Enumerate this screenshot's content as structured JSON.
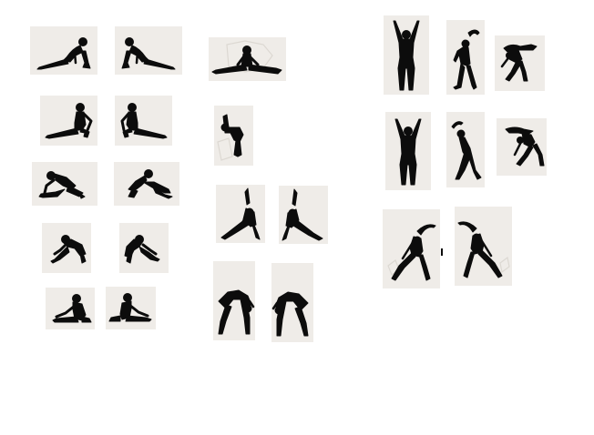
{
  "page": {
    "background": "#ffffff",
    "tile_color": "#efece8",
    "figure_color": "#0c0c0c"
  },
  "poses": [
    {
      "id": "split-forward-left",
      "icon": "split-stretch-icon"
    },
    {
      "id": "split-forward-right",
      "icon": "split-stretch-icon"
    },
    {
      "id": "side-split-center",
      "icon": "side-split-icon"
    },
    {
      "id": "arms-up-front",
      "icon": "arms-raised-icon"
    },
    {
      "id": "side-bend-right",
      "icon": "side-bend-icon"
    },
    {
      "id": "forward-bend-arm-up",
      "icon": "forward-bend-icon"
    },
    {
      "id": "seated-split-left",
      "icon": "seated-straddle-icon"
    },
    {
      "id": "seated-split-right",
      "icon": "seated-straddle-icon"
    },
    {
      "id": "standing-backbend",
      "icon": "backbend-icon"
    },
    {
      "id": "arms-up-front-2",
      "icon": "arms-raised-icon"
    },
    {
      "id": "side-bend-right-2",
      "icon": "side-bend-icon"
    },
    {
      "id": "forward-bend-arm-up-2",
      "icon": "forward-bend-icon"
    },
    {
      "id": "lunge-stretch-left",
      "icon": "lunge-stretch-icon"
    },
    {
      "id": "lunge-stretch-right",
      "icon": "lunge-stretch-icon"
    },
    {
      "id": "triangle-left",
      "icon": "triangle-pose-icon"
    },
    {
      "id": "triangle-right",
      "icon": "triangle-pose-icon"
    },
    {
      "id": "wide-side-stretch-left",
      "icon": "wide-side-stretch-icon"
    },
    {
      "id": "wide-side-stretch-right",
      "icon": "wide-side-stretch-icon"
    },
    {
      "id": "low-lunge-left",
      "icon": "low-lunge-icon"
    },
    {
      "id": "low-lunge-right",
      "icon": "low-lunge-icon"
    },
    {
      "id": "wide-forward-bend-left",
      "icon": "wide-forward-bend-icon"
    },
    {
      "id": "wide-forward-bend-right",
      "icon": "wide-forward-bend-icon"
    },
    {
      "id": "seated-forward-left",
      "icon": "seated-forward-fold-icon"
    },
    {
      "id": "seated-forward-right",
      "icon": "seated-forward-fold-icon"
    }
  ]
}
